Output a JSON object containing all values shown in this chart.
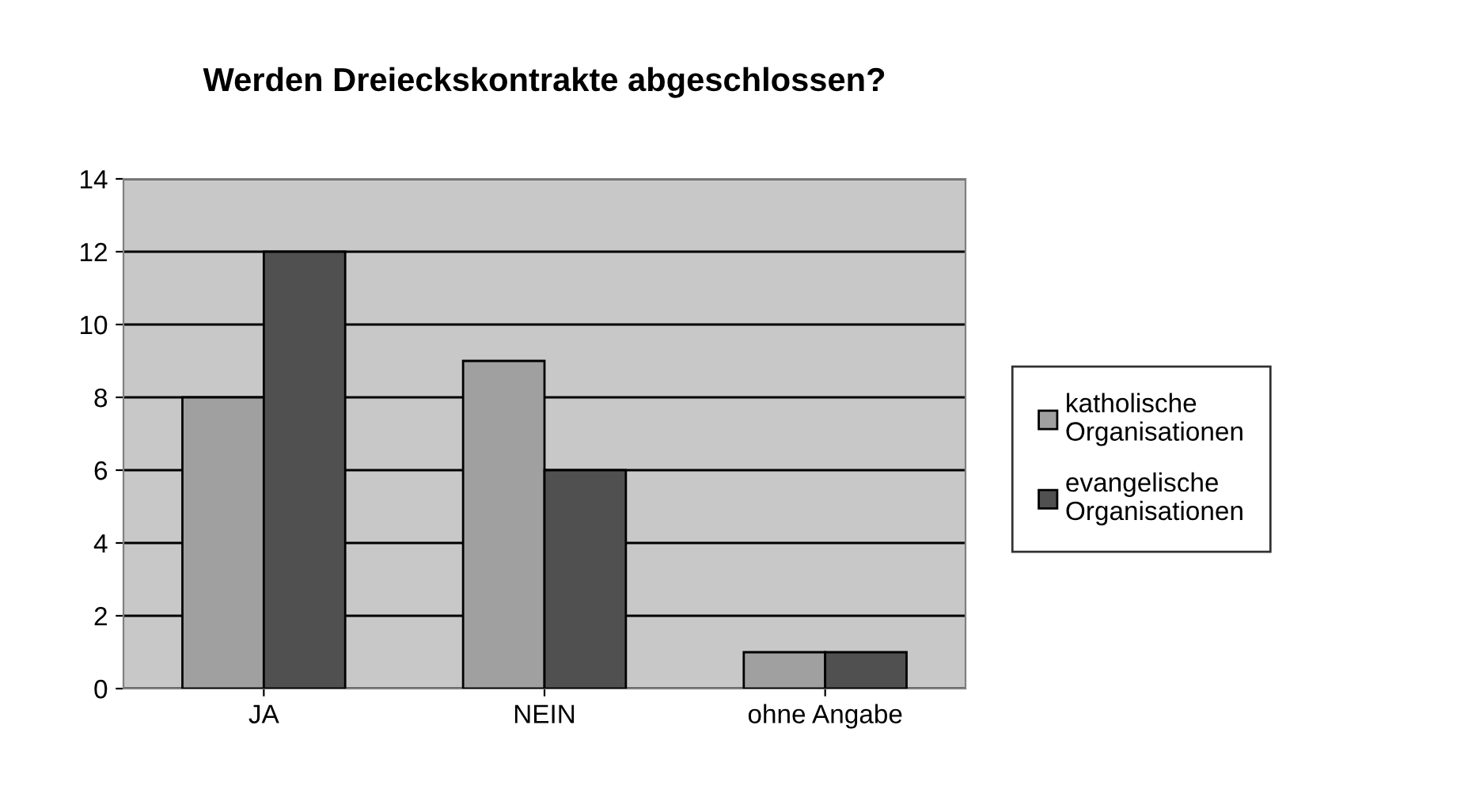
{
  "chart_data": {
    "type": "bar",
    "title": "Werden Dreieckskontrakte abgeschlossen?",
    "categories": [
      "JA",
      "NEIN",
      "ohne Angabe"
    ],
    "series": [
      {
        "name": "katholische\nOrganisationen",
        "color": "#a0a0a0",
        "values": [
          8,
          9,
          1
        ]
      },
      {
        "name": "evangelische\nOrganisationen",
        "color": "#505050",
        "values": [
          12,
          6,
          1
        ]
      }
    ],
    "ylim": [
      0,
      14
    ],
    "yticks": [
      0,
      2,
      4,
      6,
      8,
      10,
      12,
      14
    ],
    "grid": "y",
    "legend": "right"
  }
}
